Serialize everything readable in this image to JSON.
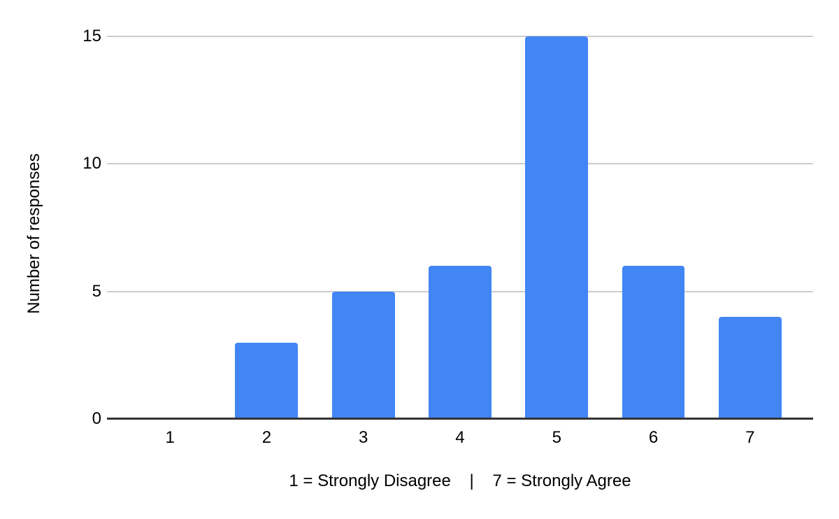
{
  "chart_data": {
    "type": "bar",
    "title": "",
    "categories": [
      "1",
      "2",
      "3",
      "4",
      "5",
      "6",
      "7"
    ],
    "values": [
      0,
      3,
      5,
      6,
      15,
      6,
      4
    ],
    "series": [
      {
        "name": "Number of responses",
        "values": [
          0,
          3,
          5,
          6,
          15,
          6,
          4
        ]
      }
    ],
    "xlabel": "1 = Strongly Disagree    |    7 = Strongly Agree",
    "ylabel": "Number of responses",
    "ylim": [
      0,
      15
    ],
    "yticks": [
      0,
      5,
      10,
      15
    ],
    "grid": "horizontal gridlines on",
    "legend": "none",
    "colors": {
      "bar": "#4285F4",
      "gridline": "#cccccc",
      "axis_line": "#333333",
      "text": "#000000",
      "background": "#ffffff"
    }
  }
}
